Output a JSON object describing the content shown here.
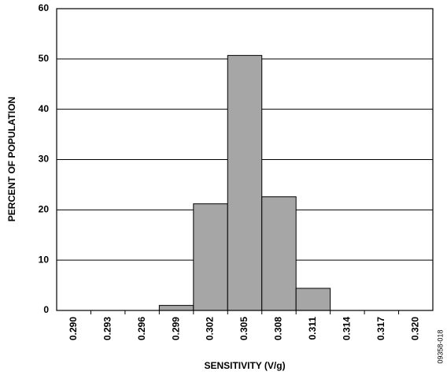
{
  "chart_data": {
    "type": "bar",
    "x_label": "SENSITIVITY (V/g)",
    "y_label": "PERCENT OF POPULATION",
    "figure_id": "09358-018",
    "categories": [
      "0.290",
      "0.293",
      "0.296",
      "0.299",
      "0.302",
      "0.305",
      "0.308",
      "0.311",
      "0.314",
      "0.317",
      "0.320"
    ],
    "values": [
      0,
      0,
      0,
      1,
      21.2,
      50.7,
      22.6,
      4.4,
      0,
      0,
      0
    ],
    "color": "#a6a6a6",
    "ylim": [
      0,
      60
    ],
    "yticks": [
      0,
      10,
      20,
      30,
      40,
      50,
      60
    ],
    "grid": true
  }
}
